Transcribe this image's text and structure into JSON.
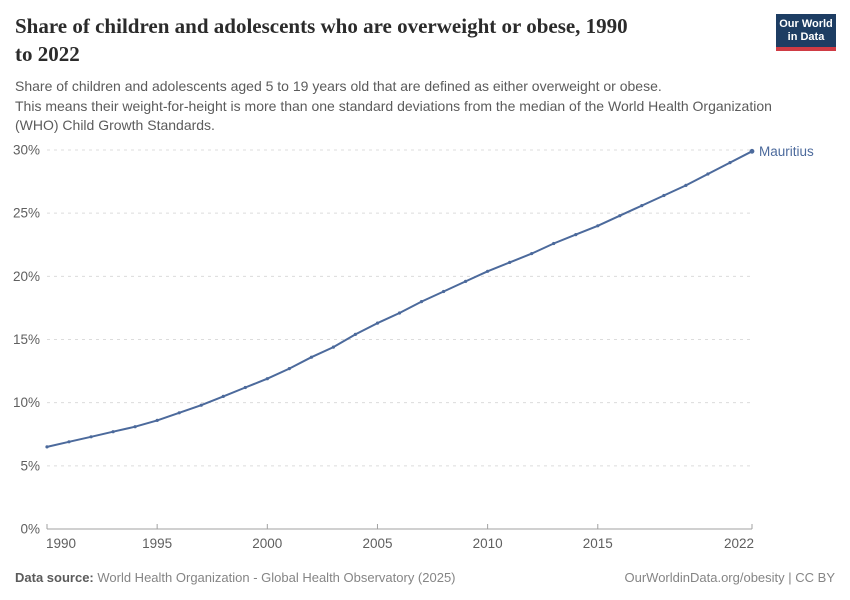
{
  "header": {
    "title_lines": [
      "Share of children and adolescents who are overweight or obese, 1990",
      "to 2022"
    ],
    "subtitle_lines": [
      "Share of children and adolescents aged 5 to 19 years old that are defined as either overweight or obese.",
      "This means their weight-for-height is more than one standard deviations from the median of the World Health Organization",
      "(WHO) Child Growth Standards."
    ],
    "logo": {
      "line1": "Our World",
      "line2": "in Data",
      "bg_color": "#1d3d63",
      "accent_color": "#cf3b44"
    }
  },
  "chart_data": {
    "type": "line",
    "title": "Share of children and adolescents who are overweight or obese, 1990 to 2022",
    "entity_label": "Mauritius",
    "unit": "%",
    "x": [
      1990,
      1991,
      1992,
      1993,
      1994,
      1995,
      1996,
      1997,
      1998,
      1999,
      2000,
      2001,
      2002,
      2003,
      2004,
      2005,
      2006,
      2007,
      2008,
      2009,
      2010,
      2011,
      2012,
      2013,
      2014,
      2015,
      2016,
      2017,
      2018,
      2019,
      2020,
      2021,
      2022
    ],
    "series": [
      {
        "name": "Mauritius",
        "values": [
          6.5,
          6.9,
          7.3,
          7.7,
          8.1,
          8.6,
          9.2,
          9.8,
          10.5,
          11.2,
          11.9,
          12.7,
          13.6,
          14.4,
          15.4,
          16.3,
          17.1,
          18.0,
          18.8,
          19.6,
          20.4,
          21.1,
          21.8,
          22.6,
          23.3,
          24.0,
          24.8,
          25.6,
          26.4,
          27.2,
          28.1,
          29.0,
          29.9
        ]
      }
    ],
    "xlim": [
      1990,
      2022
    ],
    "ylim": [
      0,
      30
    ],
    "x_ticks": [
      1990,
      1995,
      2000,
      2005,
      2010,
      2015,
      2022
    ],
    "y_ticks": [
      0,
      5,
      10,
      15,
      20,
      25,
      30
    ],
    "y_tick_suffix": "%",
    "grid": "horizontal-dashed",
    "legend": "line-end-label",
    "line_color": "#4c6a9c",
    "grid_color": "#dcdcdc",
    "axis_color": "#a1a1a1",
    "tick_label_color": "#5f5f5f"
  },
  "footer": {
    "datasource_label": "Data source:",
    "datasource_text": " World Health Organization - Global Health Observatory (2025)",
    "link_text": "OurWorldinData.org/obesity | CC BY"
  }
}
